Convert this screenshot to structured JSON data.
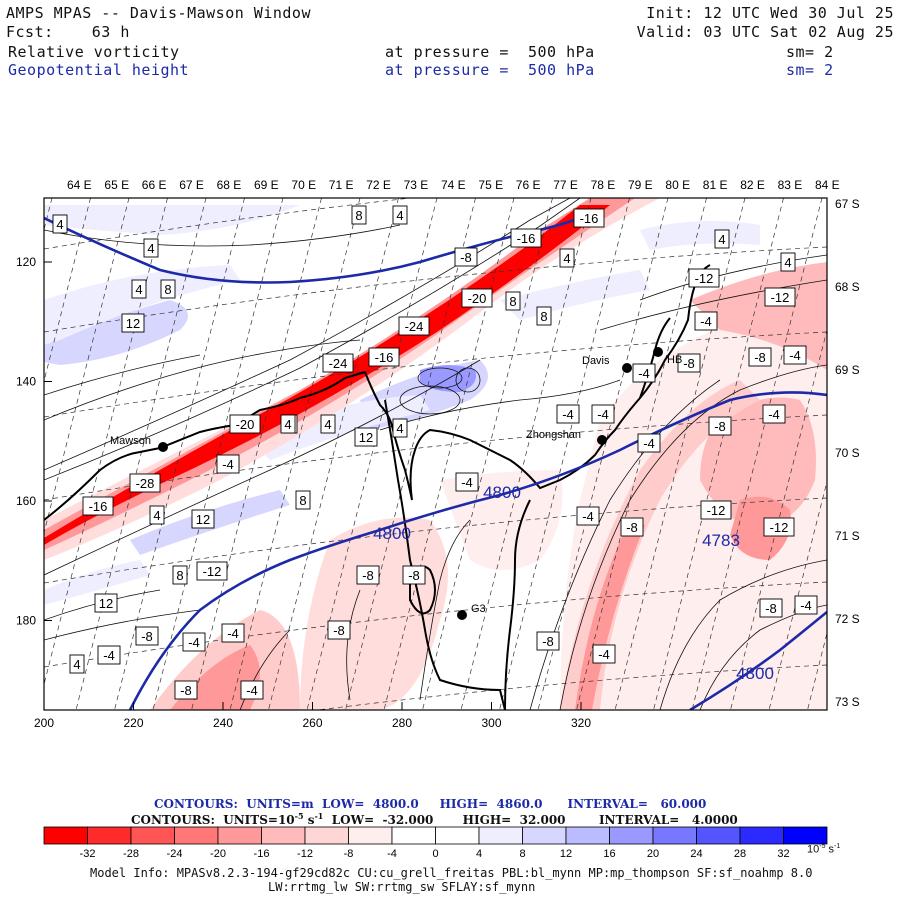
{
  "header": {
    "title": "AMPS MPAS -- Davis-Mawson Window",
    "fcst_label": "Fcst:",
    "fcst_value": "63 h",
    "init": "Init: 12 UTC Wed 30 Jul 25",
    "valid": "Valid: 03 UTC Sat 02 Aug 25",
    "field1": {
      "name": "Relative vorticity",
      "level": "at pressure =  500 hPa",
      "sm": "sm= 2"
    },
    "field2": {
      "name": "Geopotential height",
      "level": "at pressure =  500 hPa",
      "sm": "sm= 2"
    }
  },
  "map": {
    "lon_labels": [
      "64 E",
      "65 E",
      "66 E",
      "67 E",
      "68 E",
      "69 E",
      "70 E",
      "71 E",
      "72 E",
      "73 E",
      "74 E",
      "75 E",
      "76 E",
      "77 E",
      "78 E",
      "79 E",
      "80 E",
      "81 E",
      "82 E",
      "83 E",
      "84 E"
    ],
    "lat_labels": [
      "67 S",
      "68 S",
      "69 S",
      "70 S",
      "71 S",
      "72 S",
      "73 S"
    ],
    "x_ticks": [
      "200",
      "220",
      "240",
      "260",
      "280",
      "300",
      "320"
    ],
    "y_ticks": [
      "120",
      "140",
      "160",
      "180"
    ],
    "stations": [
      {
        "name": "Mawson"
      },
      {
        "name": "Davis"
      },
      {
        "name": "Zhongshan"
      },
      {
        "name": "G3"
      },
      {
        "name": "HB"
      }
    ],
    "height_labels": [
      "4800",
      "4800",
      "4783",
      "4800"
    ],
    "vort_labels": [
      "-16",
      "-16",
      "-20",
      "-24",
      "-24",
      "-16",
      "-20",
      "-28",
      "-16",
      "-8",
      "-4",
      "-4",
      "-4",
      "-8",
      "-4",
      "-8",
      "-4",
      "-4",
      "-8",
      "-12",
      "-12",
      "-8",
      "-4",
      "-4",
      "-4",
      "-8",
      "-4",
      "-4",
      "-4",
      "-12",
      "-8",
      "-12",
      "-8",
      "-12",
      "-8",
      "-4",
      "-8",
      "-4",
      "-4",
      "-8",
      "-8",
      "-4",
      "4",
      "8",
      "4",
      "4",
      "8",
      "12",
      "8",
      "8",
      "4",
      "12",
      "4",
      "8",
      "12",
      "8",
      "12",
      "4",
      "4",
      "4",
      "4",
      "4",
      "4",
      "8",
      "4"
    ]
  },
  "footer": {
    "contour1": "CONTOURS:  UNITS=m  LOW=  4800.0     HIGH=  4860.0      INTERVAL=   60.000",
    "contour2": "CONTOURS:  UNITS=10",
    "contour2_sup": "-5",
    "contour2_rest": " s",
    "contour2_sup2": "-1",
    "contour2_tail": "  LOW=  -32.000       HIGH=  32.000        INTERVAL=   4.0000",
    "colorbar_labels": [
      "-32",
      "-28",
      "-24",
      "-20",
      "-16",
      "-12",
      "-8",
      "-4",
      "0",
      "4",
      "8",
      "12",
      "16",
      "20",
      "24",
      "28",
      "32"
    ],
    "colorbar_units": "10",
    "colorbar_units_sup": "-5",
    "colorbar_units_rest": " s",
    "colorbar_units_sup2": "-1",
    "colorbar_colors": [
      "#ff0000",
      "#ff2b2b",
      "#ff5555",
      "#ff7777",
      "#ff9999",
      "#ffbbbb",
      "#ffd6d6",
      "#ffeeee",
      "#ffffff",
      "#ffffff",
      "#eeeeff",
      "#d6d6ff",
      "#bbbbff",
      "#9999ff",
      "#7777ff",
      "#5555ff",
      "#2b2bff",
      "#0000ff"
    ],
    "model_info1": "Model Info: MPASv8.2.3-194-gf29cd82c CU:cu_grell_freitas PBL:bl_mynn MP:mp_thompson SF:sf_noahmp 8.0",
    "model_info2": "LW:rrtmg_lw SW:rrtmg_sw SFLAY:sf_mynn"
  }
}
